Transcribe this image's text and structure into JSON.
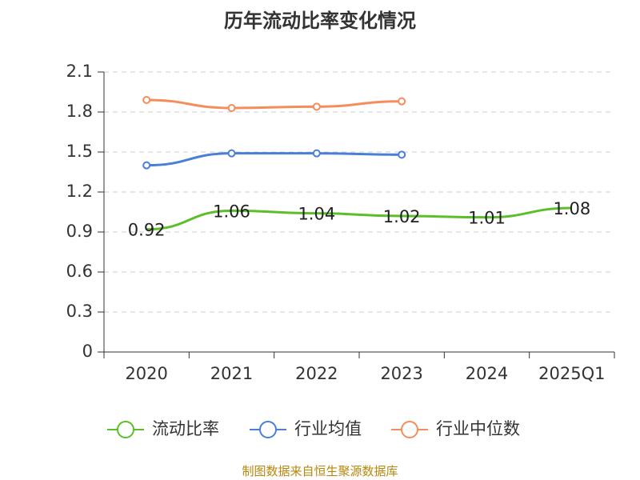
{
  "chart_data": {
    "type": "line",
    "title": "历年流动比率变化情况",
    "categories": [
      "2020",
      "2021",
      "2022",
      "2023",
      "2024",
      "2025Q1"
    ],
    "ylim": [
      0,
      2.1
    ],
    "yticks": [
      "0",
      "0.3",
      "0.6",
      "0.9",
      "1.2",
      "1.5",
      "1.8",
      "2.1"
    ],
    "grid": true,
    "legend_position": "bottom",
    "series": [
      {
        "name": "流动比率",
        "color": "#5cbf2a",
        "values": [
          0.92,
          1.06,
          1.04,
          1.02,
          1.01,
          1.08
        ],
        "labels": [
          "0.92",
          "1.06",
          "1.04",
          "1.02",
          "1.01",
          "1.08"
        ],
        "show_markers": false
      },
      {
        "name": "行业均值",
        "color": "#4a7fd8",
        "values": [
          1.4,
          1.49,
          1.49,
          1.48,
          null,
          null
        ],
        "show_markers": true
      },
      {
        "name": "行业中位数",
        "color": "#f58d5a",
        "values": [
          1.89,
          1.83,
          1.84,
          1.88,
          null,
          null
        ],
        "show_markers": true
      }
    ]
  },
  "source": "制图数据来自恒生聚源数据库"
}
